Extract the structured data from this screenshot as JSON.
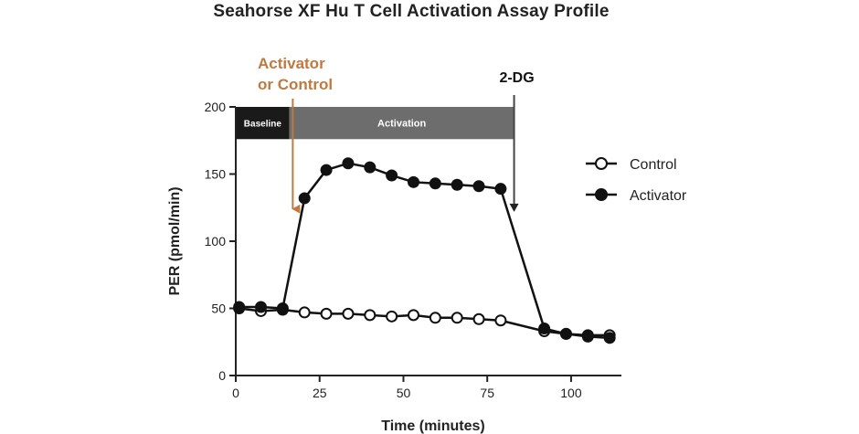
{
  "chart_data": {
    "type": "line",
    "title": "Seahorse XF Hu T Cell Activation Assay Profile",
    "xlabel": "Time (minutes)",
    "ylabel": "PER (pmol/min)",
    "xlim": [
      0,
      115
    ],
    "ylim": [
      0,
      200
    ],
    "xticks": [
      "0",
      "25",
      "50",
      "75",
      "100"
    ],
    "yticks": [
      "0",
      "50",
      "100",
      "150",
      "200"
    ],
    "xtick_values": [
      0,
      25,
      50,
      75,
      100
    ],
    "ytick_values": [
      0,
      50,
      100,
      150,
      200
    ],
    "grid": false,
    "legend_position": "right",
    "series": [
      {
        "name": "Control",
        "marker": "open-circle",
        "color": "#111111",
        "x": [
          1,
          7.5,
          14,
          20.5,
          27,
          33.5,
          40,
          46.5,
          53,
          59.5,
          66,
          72.5,
          79,
          92,
          98.5,
          105,
          111.5
        ],
        "y": [
          50,
          48,
          49,
          47,
          46,
          46,
          45,
          44,
          45,
          43,
          43,
          42,
          41,
          33,
          31,
          30,
          30
        ]
      },
      {
        "name": "Activator",
        "marker": "filled-circle",
        "color": "#111111",
        "x": [
          1,
          7.5,
          14,
          20.5,
          27,
          33.5,
          40,
          46.5,
          53,
          59.5,
          66,
          72.5,
          79,
          92,
          98.5,
          105,
          111.5
        ],
        "y": [
          51,
          51,
          50,
          132,
          153,
          158,
          155,
          149,
          144,
          143,
          142,
          141,
          139,
          35,
          31,
          29,
          28
        ]
      }
    ],
    "phases": [
      {
        "label": "Baseline",
        "x_start": 0,
        "x_end": 16,
        "color": "#1a1a1a"
      },
      {
        "label": "Activation",
        "x_start": 16,
        "x_end": 83,
        "color": "#6d6d6d"
      }
    ],
    "annotations": [
      {
        "label_lines": [
          "Activator",
          "or Control"
        ],
        "x": 17,
        "color": "#c0793e"
      },
      {
        "label_lines": [
          "2-DG"
        ],
        "x": 83,
        "color": "#111111"
      }
    ]
  }
}
